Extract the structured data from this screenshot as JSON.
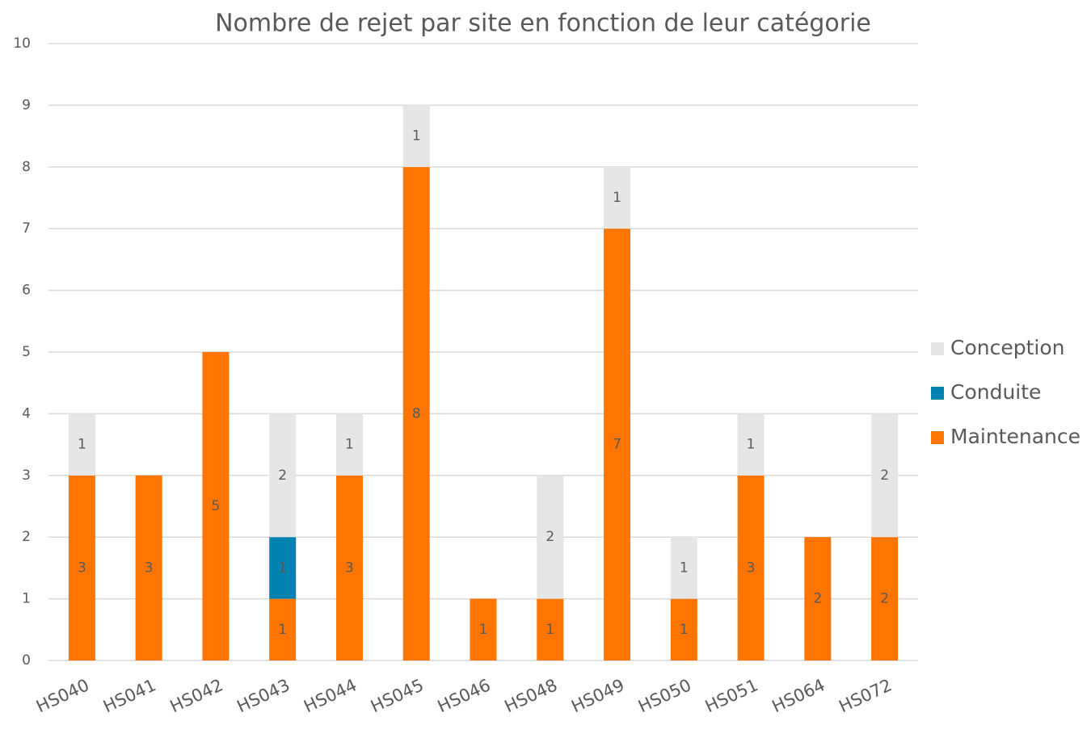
{
  "chart_data": {
    "type": "bar",
    "stacked": true,
    "title": "Nombre de rejet par site en fonction de leur catégorie",
    "categories": [
      "HS040",
      "HS041",
      "HS042",
      "HS043",
      "HS044",
      "HS045",
      "HS046",
      "HS048",
      "HS049",
      "HS050",
      "HS051",
      "HS064",
      "HS072"
    ],
    "series": [
      {
        "name": "Maintenance",
        "color": "#ff7500",
        "values": [
          3,
          3,
          5,
          1,
          3,
          8,
          1,
          1,
          7,
          1,
          3,
          2,
          2
        ]
      },
      {
        "name": "Conduite",
        "color": "#0083b0",
        "values": [
          null,
          null,
          null,
          1,
          null,
          null,
          null,
          null,
          null,
          null,
          null,
          null,
          null
        ]
      },
      {
        "name": "Conception",
        "color": "#e6e6e6",
        "values": [
          1,
          null,
          null,
          2,
          1,
          1,
          null,
          2,
          1,
          1,
          1,
          null,
          2
        ]
      }
    ],
    "ylim": [
      0,
      10
    ],
    "yticks": [
      0,
      1,
      2,
      3,
      4,
      5,
      6,
      7,
      8,
      9,
      10
    ],
    "grid": true,
    "legend": "right"
  }
}
